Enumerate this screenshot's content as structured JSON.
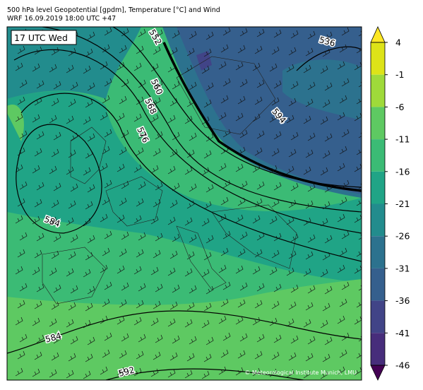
{
  "header": {
    "title": "500 hPa level Geopotential [gpdm], Temperature [°C] and Wind",
    "subtitle": "WRF 16.09.2019 18:00 UTC +47"
  },
  "map": {
    "time_label": "17 UTC Wed",
    "copyright": "© Meteorological Institute Munich, LMU",
    "contour_labels": [
      "552",
      "536",
      "560",
      "568",
      "594",
      "576",
      "584",
      "584",
      "592"
    ]
  },
  "colorbar": {
    "ticks": [
      4,
      -1,
      -6,
      -11,
      -16,
      -21,
      -26,
      -31,
      -36,
      -41,
      -46
    ],
    "colors": [
      "#dde318",
      "#9fda3a",
      "#5ec962",
      "#3bbb75",
      "#20a486",
      "#228c8d",
      "#2c728e",
      "#355f8d",
      "#414487",
      "#472d7b"
    ],
    "extend_colors": [
      "#fde725",
      "#440154"
    ]
  }
}
